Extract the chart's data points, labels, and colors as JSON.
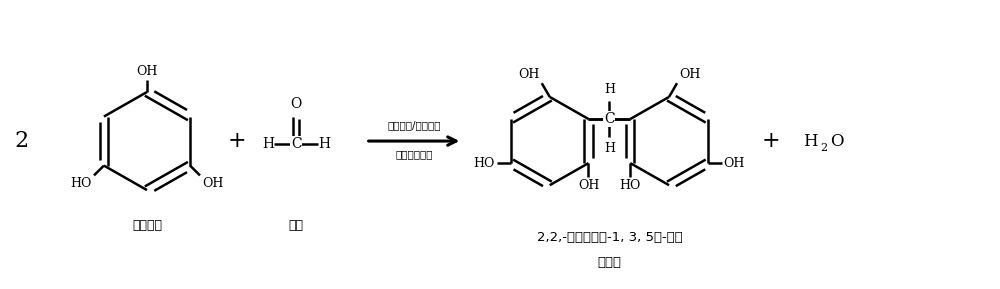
{
  "bg_color": "#ffffff",
  "text_color": "#000000",
  "fig_width": 10.0,
  "fig_height": 2.89,
  "dpi": 100,
  "label_phloroglucinol": "间苯三酚",
  "label_formaldehyde": "甲醛",
  "label_product": "2,2,-亚甲基二苯-1, 3, 5，-三醇",
  "label_product2": "粉红色",
  "label_condition1": "双催化剂/碱性条件",
  "label_condition2": "间苯三酚过量",
  "line_color": "#000000",
  "arrow_color": "#000000"
}
